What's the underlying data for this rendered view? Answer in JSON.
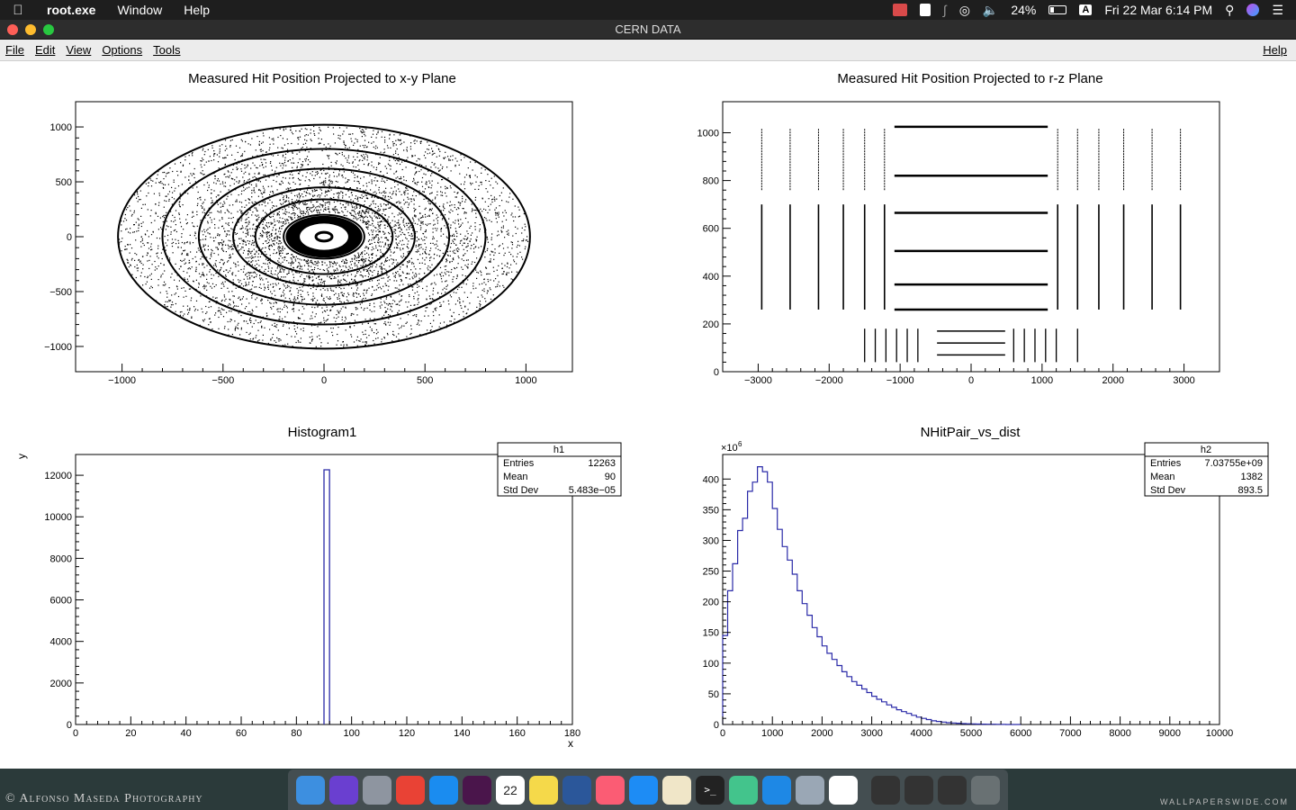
{
  "menubar": {
    "app_name": "root.exe",
    "items": [
      "Window",
      "Help"
    ],
    "battery": "24%",
    "input_source": "A",
    "datetime": "Fri 22 Mar  6:14 PM"
  },
  "window": {
    "title": "CERN DATA",
    "menu": [
      "File",
      "Edit",
      "View",
      "Options",
      "Tools"
    ],
    "help": "Help"
  },
  "panels": {
    "xy": {
      "title": "Measured Hit Position Projected to x-y Plane"
    },
    "rz": {
      "title": "Measured Hit Position Projected to r-z Plane"
    },
    "h1": {
      "title": "Histogram1",
      "stats_title": "h1",
      "stats": [
        [
          "Entries",
          "12263"
        ],
        [
          "Mean",
          "90"
        ],
        [
          "Std Dev",
          "5.483e−05"
        ]
      ]
    },
    "h2": {
      "title": "NHitPair_vs_dist",
      "stats_title": "h2",
      "stats": [
        [
          "Entries",
          "7.03755e+09"
        ],
        [
          "Mean",
          "1382"
        ],
        [
          "Std Dev",
          "893.5"
        ]
      ]
    }
  },
  "chart_data": [
    {
      "type": "scatter",
      "title": "Measured Hit Position Projected to x-y Plane",
      "xlabel": "",
      "ylabel": "",
      "xlim": [
        -1230,
        1230
      ],
      "ylim": [
        -1230,
        1230
      ],
      "xticks": [
        "−1000",
        "−500",
        "0",
        "500",
        "1000"
      ],
      "yticks": [
        "−1000",
        "−500",
        "0",
        "500",
        "1000"
      ],
      "rings_radius": [
        40,
        200,
        340,
        450,
        620,
        800,
        1020
      ],
      "dense_core_radius": 190
    },
    {
      "type": "scatter",
      "title": "Measured Hit Position Projected to r-z Plane",
      "xlabel": "",
      "ylabel": "",
      "xlim": [
        -3500,
        3500
      ],
      "ylim": [
        0,
        1130
      ],
      "xticks": [
        "−3000",
        "−2000",
        "−1000",
        "0",
        "1000",
        "2000",
        "3000"
      ],
      "yticks": [
        "0",
        "200",
        "400",
        "600",
        "800",
        "1000"
      ],
      "barrel_r": [
        260,
        365,
        505,
        665,
        820,
        1025
      ],
      "barrel_z": [
        -1080,
        1080
      ],
      "inner_barrel_r": [
        70,
        120,
        170
      ],
      "inner_barrel_z": [
        -480,
        480
      ],
      "endcap_outer_z": [
        -2950,
        -2550,
        -2150,
        -1800,
        -1500,
        -1220,
        1220,
        1500,
        1800,
        2150,
        2550,
        2950
      ],
      "endcap_outer_r_ranges": [
        [
          260,
          700
        ],
        [
          760,
          1020
        ]
      ],
      "endcap_inner_z": [
        -1500,
        -1350,
        -1200,
        -1050,
        -900,
        -750,
        600,
        750,
        900,
        1050,
        1200,
        1500
      ],
      "endcap_inner_r_range": [
        40,
        180
      ]
    },
    {
      "type": "bar",
      "title": "Histogram1",
      "xlabel": "x",
      "ylabel": "y",
      "xlim": [
        0,
        180
      ],
      "ylim": [
        0,
        13000
      ],
      "xticks": [
        "0",
        "20",
        "40",
        "60",
        "80",
        "100",
        "120",
        "140",
        "160",
        "180"
      ],
      "yticks": [
        "0",
        "2000",
        "4000",
        "6000",
        "8000",
        "10000",
        "12000"
      ],
      "bins": [
        {
          "x0": 90,
          "x1": 92,
          "value": 12263
        }
      ]
    },
    {
      "type": "line",
      "title": "NHitPair_vs_dist",
      "xlabel": "",
      "ylabel": "",
      "y_exponent_label": "×10",
      "y_exponent": "6",
      "xlim": [
        0,
        10000
      ],
      "ylim": [
        0,
        440
      ],
      "xticks": [
        "0",
        "1000",
        "2000",
        "3000",
        "4000",
        "5000",
        "6000",
        "7000",
        "8000",
        "9000",
        "10000"
      ],
      "yticks": [
        "0",
        "50",
        "100",
        "150",
        "200",
        "250",
        "300",
        "350",
        "400"
      ],
      "bin_width": 100,
      "values": [
        145,
        218,
        262,
        316,
        336,
        380,
        395,
        420,
        412,
        395,
        352,
        318,
        290,
        268,
        245,
        218,
        197,
        178,
        158,
        143,
        128,
        116,
        106,
        96,
        86,
        78,
        70,
        64,
        58,
        52,
        46,
        41,
        37,
        32,
        28,
        24,
        21,
        18,
        15,
        12,
        10,
        8,
        6,
        5,
        4,
        3,
        2.5,
        2,
        1.5,
        1.2,
        1,
        0.8,
        0.6,
        0.5,
        0.4,
        0.3,
        0.2,
        0,
        0,
        0
      ]
    }
  ],
  "dock": {
    "icons": [
      "finder-icon",
      "siri-icon",
      "launchpad-icon",
      "chrome-icon",
      "appstore-icon",
      "slack-icon",
      "calendar-icon",
      "notes-icon",
      "word-icon",
      "itunes-icon",
      "appstore2-icon",
      "textedit-icon",
      "terminal-icon",
      "atom-icon",
      "safari-icon",
      "preview-icon",
      "activity-icon",
      "window1-icon",
      "window2-icon",
      "window3-icon",
      "trash-icon"
    ],
    "calendar_day": "22"
  },
  "wallpaper": {
    "credit": "© Alfonso Maseda Photography",
    "site": "WALLPAPERSWIDE.COM"
  }
}
